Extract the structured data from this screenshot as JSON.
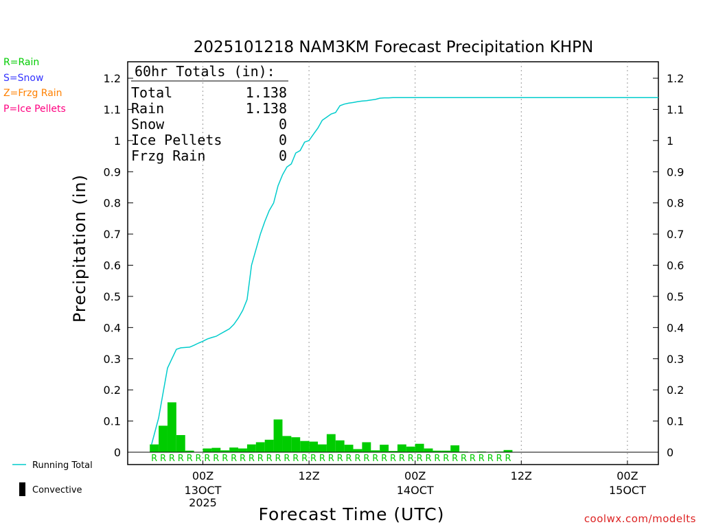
{
  "chart_data": {
    "type": "bar+line",
    "title": "2025101218 NAM3KM Forecast Precipitation KHPN",
    "xlabel": "Forecast Time (UTC)",
    "ylabel": "Precipitation (in)",
    "ylim": [
      0,
      1.2
    ],
    "y_ticks": [
      "0",
      "0.1",
      "0.2",
      "0.3",
      "0.4",
      "0.5",
      "0.6",
      "0.7",
      "0.8",
      "0.9",
      "1",
      "1.1",
      "1.2"
    ],
    "x_range_hours": [
      -2.5,
      57.5
    ],
    "x_ticks": [
      {
        "hour": 6,
        "line1": "00Z",
        "line2": "13OCT",
        "line3": "2025"
      },
      {
        "hour": 18,
        "line1": "12Z",
        "line2": "",
        "line3": ""
      },
      {
        "hour": 30,
        "line1": "00Z",
        "line2": "14OCT",
        "line3": ""
      },
      {
        "hour": 42,
        "line1": "12Z",
        "line2": "",
        "line3": ""
      },
      {
        "hour": 54,
        "line1": "00Z",
        "line2": "15OCT",
        "line3": ""
      }
    ],
    "precip_type_letter": "R",
    "precip_type_count": 41,
    "hours": [
      1,
      2,
      3,
      4,
      5,
      6,
      7,
      8,
      9,
      10,
      11,
      12,
      13,
      14,
      15,
      16,
      17,
      18,
      19,
      20,
      21,
      22,
      23,
      24,
      25,
      26,
      27,
      28,
      29,
      30,
      31,
      32,
      33,
      34,
      35,
      36,
      37,
      38,
      39,
      40,
      41,
      42
    ],
    "hourly_precip": [
      0.025,
      0.085,
      0.16,
      0.055,
      0.005,
      0.0,
      0.012,
      0.014,
      0.006,
      0.015,
      0.012,
      0.025,
      0.032,
      0.04,
      0.105,
      0.052,
      0.048,
      0.036,
      0.034,
      0.025,
      0.058,
      0.038,
      0.024,
      0.01,
      0.032,
      0.006,
      0.024,
      0.004,
      0.025,
      0.018,
      0.027,
      0.012,
      0.005,
      0.005,
      0.022,
      0.002,
      0.001,
      0.002,
      0.001,
      0.002,
      0.007,
      0.0
    ],
    "running_total": {
      "hours": [
        0.2,
        1,
        1.5,
        2,
        2.5,
        3,
        3.5,
        4,
        4.5,
        5,
        5.5,
        6,
        6.5,
        7,
        7.5,
        8,
        8.5,
        9,
        9.5,
        10,
        10.5,
        11,
        11.5,
        12,
        12.5,
        13,
        13.5,
        14,
        14.5,
        15,
        15.5,
        16,
        16.5,
        17,
        17.5,
        18,
        18.5,
        19,
        19.5,
        20,
        20.5,
        21,
        21.5,
        22,
        22.5,
        23,
        23.5,
        24,
        24.5,
        25,
        25.5,
        26,
        26.5,
        27,
        27.5,
        28,
        28.5,
        29,
        29.5,
        30,
        30.5,
        31,
        31.5,
        32,
        32.5,
        33,
        33.5,
        34,
        34.5,
        35,
        35.5,
        36,
        36.5,
        37,
        37.5,
        38,
        38.5,
        39,
        39.5,
        40,
        40.5,
        41,
        41.5,
        42,
        57.5
      ],
      "values": [
        0.025,
        0.11,
        0.19,
        0.27,
        0.3,
        0.33,
        0.335,
        0.336,
        0.337,
        0.343,
        0.35,
        0.356,
        0.363,
        0.368,
        0.372,
        0.38,
        0.388,
        0.396,
        0.41,
        0.43,
        0.455,
        0.49,
        0.6,
        0.65,
        0.7,
        0.74,
        0.775,
        0.8,
        0.855,
        0.89,
        0.915,
        0.925,
        0.96,
        0.968,
        0.995,
        1.0,
        1.02,
        1.04,
        1.065,
        1.075,
        1.085,
        1.09,
        1.112,
        1.117,
        1.12,
        1.122,
        1.125,
        1.127,
        1.128,
        1.13,
        1.132,
        1.136,
        1.137,
        1.137,
        1.138,
        1.138,
        1.138,
        1.138,
        1.138,
        1.138,
        1.138,
        1.138,
        1.138,
        1.138,
        1.138,
        1.138,
        1.138,
        1.138,
        1.138,
        1.138,
        1.138,
        1.138,
        1.138,
        1.138,
        1.138,
        1.138,
        1.138,
        1.138,
        1.138,
        1.138,
        1.138,
        1.138,
        1.138,
        1.138,
        1.138
      ]
    },
    "colors": {
      "rain": "#00cc00",
      "snow": "#3333ff",
      "frzg": "#ff8000",
      "ice": "#ff0080",
      "running_total": "#00cccc",
      "credit": "#dd2222"
    },
    "type_legend": [
      "R=Rain",
      "S=Snow",
      "Z=Frzg Rain",
      "P=Ice Pellets"
    ],
    "series_legend": {
      "line": "Running Total",
      "bar": "Convective"
    },
    "totals": {
      "header": "60hr Totals (in):",
      "rows": [
        {
          "label": "Total",
          "value": "1.138"
        },
        {
          "label": "Rain",
          "value": "1.138"
        },
        {
          "label": "Snow",
          "value": "0"
        },
        {
          "label": "Ice Pellets",
          "value": "0"
        },
        {
          "label": "Frzg Rain",
          "value": "0"
        }
      ]
    },
    "credit": "coolwx.com/modelts"
  }
}
